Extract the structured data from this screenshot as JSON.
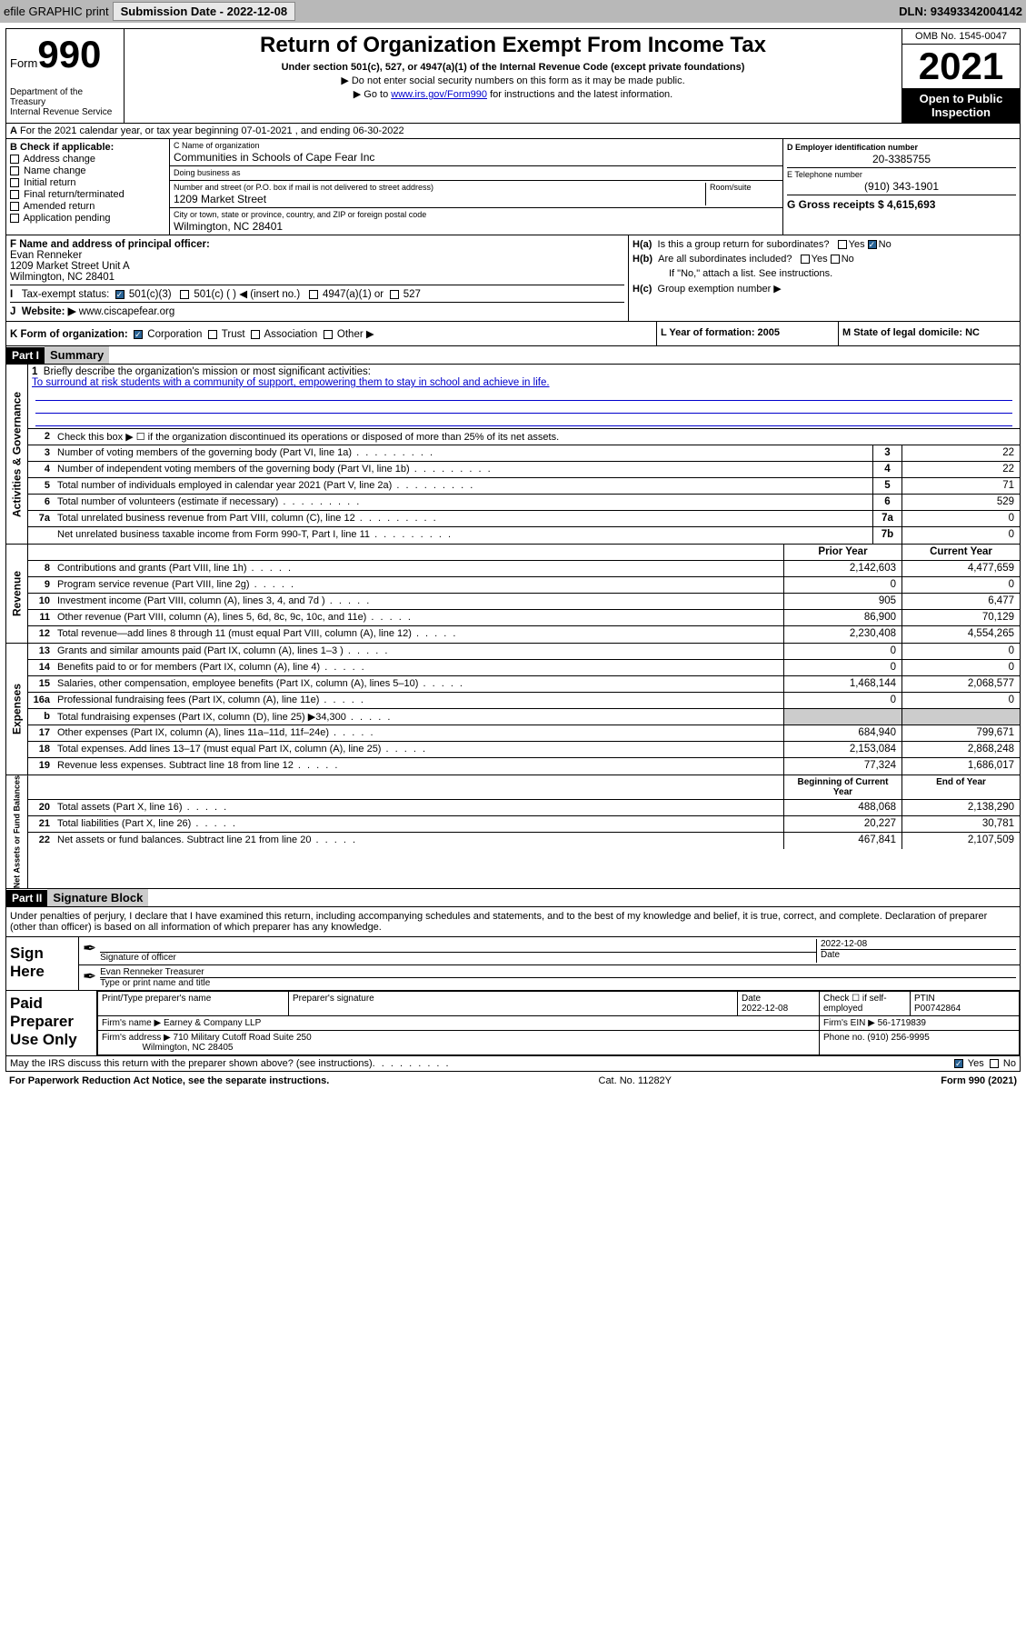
{
  "toolbar": {
    "efile": "efile GRAPHIC print",
    "submission_label": "Submission Date - 2022-12-08",
    "dln": "DLN: 93493342004142"
  },
  "header": {
    "form_prefix": "Form",
    "form_number": "990",
    "title": "Return of Organization Exempt From Income Tax",
    "subtitle": "Under section 501(c), 527, or 4947(a)(1) of the Internal Revenue Code (except private foundations)",
    "note1": "▶ Do not enter social security numbers on this form as it may be made public.",
    "note2_pre": "▶ Go to ",
    "note2_link": "www.irs.gov/Form990",
    "note2_post": " for instructions and the latest information.",
    "dept": "Department of the Treasury\nInternal Revenue Service",
    "omb": "OMB No. 1545-0047",
    "year": "2021",
    "open_public": "Open to Public Inspection"
  },
  "row_a": "For the 2021 calendar year, or tax year beginning 07-01-2021   , and ending 06-30-2022",
  "section_b": {
    "header": "B Check if applicable:",
    "items": [
      "Address change",
      "Name change",
      "Initial return",
      "Final return/terminated",
      "Amended return",
      "Application pending"
    ]
  },
  "section_c": {
    "name_label": "C Name of organization",
    "name": "Communities in Schools of Cape Fear Inc",
    "dba_label": "Doing business as",
    "dba": "",
    "addr_label": "Number and street (or P.O. box if mail is not delivered to street address)",
    "room_label": "Room/suite",
    "addr": "1209 Market Street",
    "city_label": "City or town, state or province, country, and ZIP or foreign postal code",
    "city": "Wilmington, NC  28401"
  },
  "section_d": {
    "ein_label": "D Employer identification number",
    "ein": "20-3385755",
    "phone_label": "E Telephone number",
    "phone": "(910) 343-1901",
    "gross_label": "G Gross receipts $ 4,615,693"
  },
  "section_f": {
    "label": "F Name and address of principal officer:",
    "name": "Evan Renneker",
    "addr1": "1209 Market Street Unit A",
    "addr2": "Wilmington, NC  28401"
  },
  "section_i": {
    "label": "Tax-exempt status:",
    "opts": [
      "501(c)(3)",
      "501(c) (  ) ◀ (insert no.)",
      "4947(a)(1) or",
      "527"
    ]
  },
  "section_j": {
    "label": "Website: ▶",
    "value": "www.ciscapefear.org"
  },
  "section_h": {
    "ha": "Is this a group return for subordinates?",
    "hb": "Are all subordinates included?",
    "hb_note": "If \"No,\" attach a list. See instructions.",
    "hc": "Group exemption number ▶"
  },
  "section_k": "K Form of organization:",
  "k_opts": [
    "Corporation",
    "Trust",
    "Association",
    "Other ▶"
  ],
  "section_l": "L Year of formation: 2005",
  "section_m": "M State of legal domicile: NC",
  "part1": {
    "label": "Part I",
    "title": "Summary"
  },
  "mission": {
    "q": "Briefly describe the organization's mission or most significant activities:",
    "text": "To surround at risk students with a community of support, empowering them to stay in school and achieve in life."
  },
  "line2": "Check this box ▶ ☐  if the organization discontinued its operations or disposed of more than 25% of its net assets.",
  "governance_rows": [
    {
      "n": "3",
      "t": "Number of voting members of the governing body (Part VI, line 1a)",
      "box": "3",
      "v": "22"
    },
    {
      "n": "4",
      "t": "Number of independent voting members of the governing body (Part VI, line 1b)",
      "box": "4",
      "v": "22"
    },
    {
      "n": "5",
      "t": "Total number of individuals employed in calendar year 2021 (Part V, line 2a)",
      "box": "5",
      "v": "71"
    },
    {
      "n": "6",
      "t": "Total number of volunteers (estimate if necessary)",
      "box": "6",
      "v": "529"
    },
    {
      "n": "7a",
      "t": "Total unrelated business revenue from Part VIII, column (C), line 12",
      "box": "7a",
      "v": "0"
    },
    {
      "n": "",
      "t": "Net unrelated business taxable income from Form 990-T, Part I, line 11",
      "box": "7b",
      "v": "0"
    }
  ],
  "col_headers": {
    "prior": "Prior Year",
    "current": "Current Year",
    "boy": "Beginning of Current Year",
    "eoy": "End of Year"
  },
  "revenue_rows": [
    {
      "n": "8",
      "t": "Contributions and grants (Part VIII, line 1h)",
      "p": "2,142,603",
      "c": "4,477,659"
    },
    {
      "n": "9",
      "t": "Program service revenue (Part VIII, line 2g)",
      "p": "0",
      "c": "0"
    },
    {
      "n": "10",
      "t": "Investment income (Part VIII, column (A), lines 3, 4, and 7d )",
      "p": "905",
      "c": "6,477"
    },
    {
      "n": "11",
      "t": "Other revenue (Part VIII, column (A), lines 5, 6d, 8c, 9c, 10c, and 11e)",
      "p": "86,900",
      "c": "70,129"
    },
    {
      "n": "12",
      "t": "Total revenue—add lines 8 through 11 (must equal Part VIII, column (A), line 12)",
      "p": "2,230,408",
      "c": "4,554,265"
    }
  ],
  "expense_rows": [
    {
      "n": "13",
      "t": "Grants and similar amounts paid (Part IX, column (A), lines 1–3 )",
      "p": "0",
      "c": "0"
    },
    {
      "n": "14",
      "t": "Benefits paid to or for members (Part IX, column (A), line 4)",
      "p": "0",
      "c": "0"
    },
    {
      "n": "15",
      "t": "Salaries, other compensation, employee benefits (Part IX, column (A), lines 5–10)",
      "p": "1,468,144",
      "c": "2,068,577"
    },
    {
      "n": "16a",
      "t": "Professional fundraising fees (Part IX, column (A), line 11e)",
      "p": "0",
      "c": "0"
    },
    {
      "n": "b",
      "t": "Total fundraising expenses (Part IX, column (D), line 25) ▶34,300",
      "p": "",
      "c": "",
      "grey": true
    },
    {
      "n": "17",
      "t": "Other expenses (Part IX, column (A), lines 11a–11d, 11f–24e)",
      "p": "684,940",
      "c": "799,671"
    },
    {
      "n": "18",
      "t": "Total expenses. Add lines 13–17 (must equal Part IX, column (A), line 25)",
      "p": "2,153,084",
      "c": "2,868,248"
    },
    {
      "n": "19",
      "t": "Revenue less expenses. Subtract line 18 from line 12",
      "p": "77,324",
      "c": "1,686,017"
    }
  ],
  "netassets_rows": [
    {
      "n": "20",
      "t": "Total assets (Part X, line 16)",
      "p": "488,068",
      "c": "2,138,290"
    },
    {
      "n": "21",
      "t": "Total liabilities (Part X, line 26)",
      "p": "20,227",
      "c": "30,781"
    },
    {
      "n": "22",
      "t": "Net assets or fund balances. Subtract line 21 from line 20",
      "p": "467,841",
      "c": "2,107,509"
    }
  ],
  "vtabs": {
    "gov": "Activities & Governance",
    "rev": "Revenue",
    "exp": "Expenses",
    "net": "Net Assets or Fund Balances"
  },
  "part2": {
    "label": "Part II",
    "title": "Signature Block"
  },
  "sig_intro": "Under penalties of perjury, I declare that I have examined this return, including accompanying schedules and statements, and to the best of my knowledge and belief, it is true, correct, and complete. Declaration of preparer (other than officer) is based on all information of which preparer has any knowledge.",
  "sign_here": "Sign Here",
  "sig": {
    "date": "2022-12-08",
    "sig_label": "Signature of officer",
    "date_label": "Date",
    "name": "Evan Renneker Treasurer",
    "name_label": "Type or print name and title"
  },
  "paid_prep": "Paid Preparer Use Only",
  "prep": {
    "h1": "Print/Type preparer's name",
    "h2": "Preparer's signature",
    "h3": "Date",
    "h4": "Check ☐ if self-employed",
    "h5": "PTIN",
    "date": "2022-12-08",
    "ptin": "P00742864",
    "firm_label": "Firm's name   ▶",
    "firm": "Earney & Company LLP",
    "ein_label": "Firm's EIN ▶",
    "ein": "56-1719839",
    "addr_label": "Firm's address ▶",
    "addr": "710 Military Cutoff Road Suite 250",
    "addr2": "Wilmington, NC 28405",
    "phone_label": "Phone no.",
    "phone": "(910) 256-9995"
  },
  "discuss": "May the IRS discuss this return with the preparer shown above? (see instructions)",
  "footer": {
    "l": "For Paperwork Reduction Act Notice, see the separate instructions.",
    "m": "Cat. No. 11282Y",
    "r": "Form 990 (2021)"
  }
}
